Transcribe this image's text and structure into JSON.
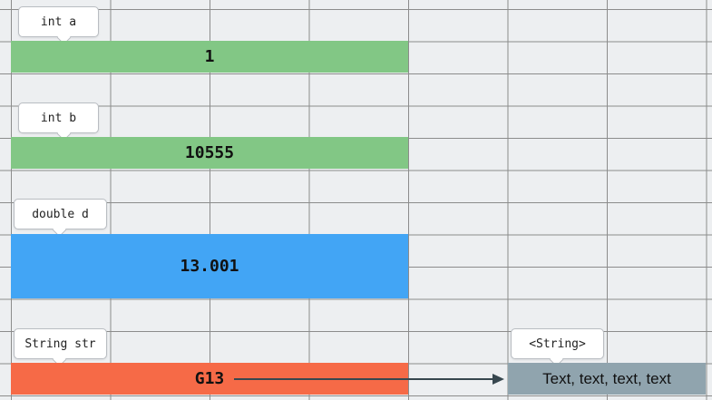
{
  "variables": [
    {
      "label": "int a",
      "value": "1",
      "color": "#82c785"
    },
    {
      "label": "int b",
      "value": "10555",
      "color": "#82c785"
    },
    {
      "label": "double d",
      "value": "13.001",
      "color": "#42a5f5"
    },
    {
      "label": "String str",
      "value": "G13",
      "color": "#f66a47"
    }
  ],
  "heap_object": {
    "label": "<String>",
    "value": "Text, text, text, text",
    "color": "#90a4ae"
  },
  "arrow_color": "#37474f"
}
